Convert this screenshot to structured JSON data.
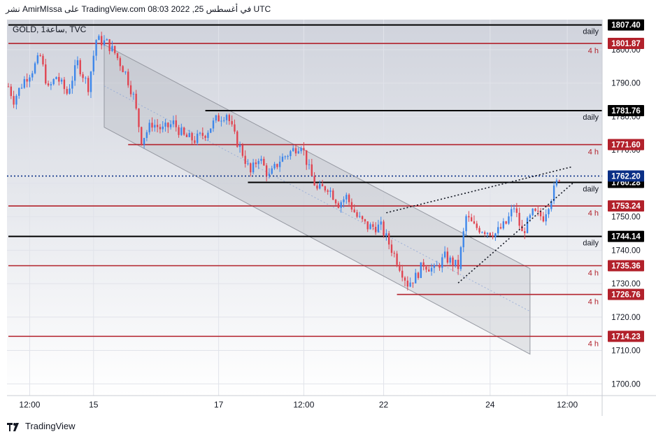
{
  "header": {
    "text": "نشر AmirMIssa على TradingView.com في أغسطس 25, 2022 08:03 UTC"
  },
  "symbol_label": "GOLD, 1ساعة, TVC",
  "footer": {
    "brand": "TradingView",
    "logo_icon": "tradingview-logo-icon"
  },
  "colors": {
    "up": "#3d86ea",
    "down": "#e04451",
    "black_level": "#000000",
    "red_level": "#b2212b",
    "current": "#0a2f86",
    "channel_fill": "#a8abb3",
    "channel_line": "#9598a1",
    "band_dark": "#d0d3dc",
    "band_mid": "#e7e9ee",
    "band_light": "#ffffff"
  },
  "chart_data": {
    "type": "candlestick",
    "instrument": "GOLD",
    "timeframe": "1ساعة",
    "source": "TVC",
    "ylim": [
      1696.5,
      1809
    ],
    "y_ticks": [
      1700,
      1710,
      1720,
      1730,
      1740,
      1750,
      1760,
      1770,
      1780,
      1790,
      1800
    ],
    "y_tick_labels": [
      "1700.00",
      "1710.00",
      "1720.00",
      "1730.00",
      "1740.00",
      "1750.00",
      "1760.00",
      "1770.00",
      "1780.00",
      "1790.00",
      "1800.00"
    ],
    "x_ticks": [
      {
        "label": "12:00",
        "i": 8
      },
      {
        "label": "15",
        "i": 32
      },
      {
        "label": "17",
        "i": 79
      },
      {
        "label": "12:00",
        "i": 111
      },
      {
        "label": "22",
        "i": 141
      },
      {
        "label": "24",
        "i": 181
      },
      {
        "label": "12:00",
        "i": 210
      }
    ],
    "bars_total": 222,
    "anchors": [
      [
        0,
        1789
      ],
      [
        2,
        1785
      ],
      [
        6,
        1791
      ],
      [
        9,
        1794
      ],
      [
        12,
        1798
      ],
      [
        15,
        1788
      ],
      [
        18,
        1792
      ],
      [
        22,
        1787
      ],
      [
        26,
        1796
      ],
      [
        30,
        1789
      ],
      [
        33,
        1803
      ],
      [
        37,
        1802
      ],
      [
        40,
        1799
      ],
      [
        44,
        1793
      ],
      [
        47,
        1786
      ],
      [
        50,
        1773
      ],
      [
        54,
        1778
      ],
      [
        58,
        1776
      ],
      [
        62,
        1778
      ],
      [
        66,
        1774
      ],
      [
        70,
        1773
      ],
      [
        74,
        1775
      ],
      [
        78,
        1779
      ],
      [
        82,
        1781
      ],
      [
        85,
        1774
      ],
      [
        88,
        1769
      ],
      [
        91,
        1763
      ],
      [
        94,
        1768
      ],
      [
        98,
        1762
      ],
      [
        102,
        1767
      ],
      [
        107,
        1770
      ],
      [
        110,
        1772
      ],
      [
        113,
        1764
      ],
      [
        116,
        1758
      ],
      [
        120,
        1759
      ],
      [
        124,
        1754
      ],
      [
        127,
        1756
      ],
      [
        131,
        1750
      ],
      [
        135,
        1747
      ],
      [
        140,
        1747
      ],
      [
        143,
        1742
      ],
      [
        146,
        1737
      ],
      [
        150,
        1730
      ],
      [
        153,
        1732
      ],
      [
        156,
        1736
      ],
      [
        160,
        1734
      ],
      [
        164,
        1738
      ],
      [
        169,
        1735
      ],
      [
        172,
        1750
      ],
      [
        175,
        1747
      ],
      [
        179,
        1746
      ],
      [
        183,
        1745
      ],
      [
        187,
        1748
      ],
      [
        190,
        1753
      ],
      [
        193,
        1745
      ],
      [
        197,
        1751
      ],
      [
        201,
        1750
      ],
      [
        204,
        1756
      ],
      [
        207,
        1762
      ]
    ],
    "horizontal_levels": [
      {
        "value": 1807.4,
        "label": "1807.40",
        "tag": "daily",
        "color": "black",
        "from_i": 0
      },
      {
        "value": 1801.87,
        "label": "1801.87",
        "tag": "4 h",
        "color": "red",
        "from_i": 0
      },
      {
        "value": 1781.76,
        "label": "1781.76",
        "tag": "daily",
        "color": "black",
        "from_i": 74
      },
      {
        "value": 1771.6,
        "label": "1771.60",
        "tag": "4 h",
        "color": "red",
        "from_i": 45
      },
      {
        "value": 1760.28,
        "label": "1760.28",
        "tag": "daily",
        "color": "black",
        "from_i": 90
      },
      {
        "value": 1753.24,
        "label": "1753.24",
        "tag": "4 h",
        "color": "red",
        "from_i": 0
      },
      {
        "value": 1744.14,
        "label": "1744.14",
        "tag": "daily",
        "color": "black",
        "from_i": 0
      },
      {
        "value": 1735.36,
        "label": "1735.36",
        "tag": "4 h",
        "color": "red",
        "from_i": 0
      },
      {
        "value": 1726.76,
        "label": "1726.76",
        "tag": "4 h",
        "color": "red",
        "from_i": 146
      },
      {
        "value": 1714.23,
        "label": "1714.23",
        "tag": "4 h",
        "color": "red",
        "from_i": 0
      }
    ],
    "current_price": {
      "value": 1762.2,
      "label": "1762.20"
    },
    "channel": {
      "upper": [
        [
          36,
          1801.5
        ],
        [
          196,
          1734.5
        ]
      ],
      "lower": [
        [
          36,
          1776.8
        ],
        [
          196,
          1708.9
        ]
      ]
    },
    "trendlines": [
      {
        "style": "dotted",
        "points": [
          [
            142,
            1751.2
          ],
          [
            212,
            1765
          ]
        ]
      },
      {
        "style": "dotted",
        "points": [
          [
            169,
            1730.2
          ],
          [
            212,
            1760
          ]
        ]
      }
    ]
  }
}
